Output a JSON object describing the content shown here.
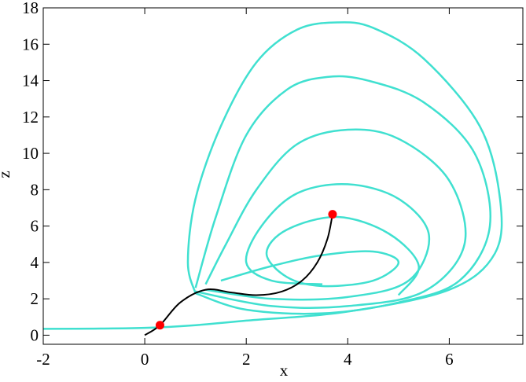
{
  "chart_data": {
    "type": "line",
    "x_label": "x",
    "y_label": "z",
    "xlim": [
      -2,
      7.45
    ],
    "ylim": [
      -0.5,
      18
    ],
    "xticks": [
      -2,
      0,
      2,
      4,
      6
    ],
    "yticks": [
      0,
      2,
      4,
      6,
      8,
      10,
      12,
      14,
      16,
      18
    ],
    "series": [
      {
        "color": "#40e0d0",
        "x": [
          -2,
          -1,
          0,
          1,
          2,
          4,
          6,
          6.9,
          7.0,
          6.6,
          5.5,
          4.5,
          3.8,
          3.0,
          2.2,
          1.5,
          1.0,
          0.85,
          1.0
        ],
        "values": [
          0.35,
          0.36,
          0.4,
          0.55,
          0.8,
          1.3,
          2.5,
          4.5,
          7.5,
          11.5,
          15.2,
          16.9,
          17.2,
          16.8,
          15.0,
          11.5,
          7.5,
          4.0,
          2.3
        ]
      },
      {
        "color": "#40e0d0",
        "x": [
          1.0,
          2.0,
          3.5,
          5.0,
          6.2,
          6.8,
          6.5,
          5.5,
          4.4,
          3.6,
          2.8,
          2.0,
          1.4,
          1.0
        ],
        "values": [
          2.3,
          1.4,
          1.2,
          1.8,
          3.0,
          6.0,
          10.0,
          12.8,
          14.0,
          14.2,
          13.5,
          11.0,
          6.5,
          2.6
        ]
      },
      {
        "color": "#40e0d0",
        "x": [
          1.0,
          2.5,
          4.0,
          5.5,
          6.3,
          6.0,
          5.0,
          4.0,
          3.0,
          2.2,
          1.6,
          1.2
        ],
        "values": [
          2.4,
          1.6,
          1.6,
          2.4,
          5.0,
          8.5,
          10.8,
          11.3,
          10.5,
          8.0,
          5.0,
          2.8
        ]
      },
      {
        "color": "#40e0d0",
        "x": [
          1.2,
          2.5,
          4.0,
          5.2,
          5.6,
          5.0,
          4.0,
          3.0,
          2.3,
          2.0,
          2.5,
          3.5
        ],
        "values": [
          2.5,
          2.0,
          2.1,
          3.0,
          5.5,
          7.5,
          8.3,
          7.8,
          6.0,
          4.0,
          3.0,
          2.8
        ]
      },
      {
        "color": "#40e0d0",
        "x": [
          1.5,
          2.5,
          3.5,
          4.5,
          5.0,
          4.5,
          3.5,
          2.8,
          2.4,
          2.8,
          3.8,
          4.8,
          5.4,
          5.0
        ],
        "values": [
          3.0,
          3.8,
          4.4,
          4.6,
          4.0,
          3.0,
          2.7,
          3.2,
          4.5,
          5.8,
          6.5,
          5.6,
          3.8,
          2.2
        ]
      },
      {
        "color": "#000000",
        "x": [
          0.0,
          0.3,
          0.7,
          1.2,
          1.7,
          2.2,
          2.7,
          3.1,
          3.4,
          3.6,
          3.7
        ],
        "values": [
          0.0,
          0.55,
          1.8,
          2.5,
          2.35,
          2.2,
          2.4,
          3.0,
          4.0,
          5.3,
          6.65
        ]
      }
    ],
    "points": {
      "color": "#ff0000",
      "x": [
        0.3,
        3.7
      ],
      "values": [
        0.55,
        6.65
      ]
    }
  }
}
